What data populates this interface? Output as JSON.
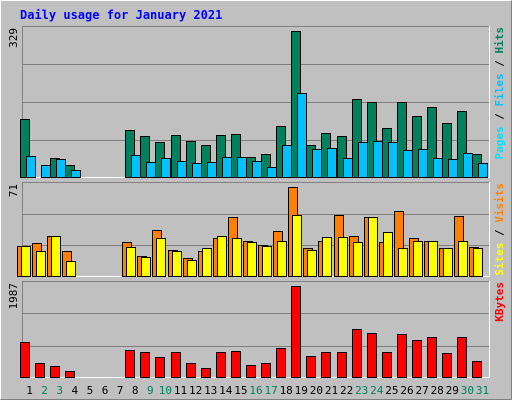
{
  "title": "Daily usage for January 2021",
  "colors": {
    "background": "#C0C0C0",
    "title": "#0000FF",
    "hits": "#00805C",
    "files": "#00C0FF",
    "pages": "#00E0FF",
    "visits": "#FF8000",
    "sites": "#FFFF00",
    "kbytes": "#FF0000",
    "weekend_day": "#00805C",
    "weekday": "#000000"
  },
  "chart_data": [
    {
      "type": "bar",
      "name": "hits-files-pages",
      "categories": [
        "1",
        "2",
        "3",
        "4",
        "5",
        "6",
        "7",
        "8",
        "9",
        "10",
        "11",
        "12",
        "13",
        "14",
        "15",
        "16",
        "17",
        "18",
        "19",
        "20",
        "21",
        "22",
        "23",
        "24",
        "25",
        "26",
        "27",
        "28",
        "29",
        "30",
        "31"
      ],
      "ymax_label": "329",
      "ylim": [
        0,
        329
      ],
      "legend": [
        "Pages",
        "/",
        "Files",
        "/",
        "Hits"
      ],
      "series": [
        {
          "name": "Hits",
          "color_key": "hits",
          "values": [
            130,
            0,
            42,
            28,
            0,
            0,
            0,
            105,
            92,
            78,
            95,
            80,
            72,
            95,
            98,
            45,
            52,
            115,
            329,
            72,
            100,
            92,
            175,
            170,
            110,
            168,
            138,
            158,
            122,
            148,
            52
          ]
        },
        {
          "name": "Files",
          "color_key": "files",
          "values": [
            48,
            26,
            40,
            16,
            0,
            0,
            0,
            50,
            33,
            42,
            35,
            32,
            33,
            44,
            45,
            36,
            22,
            72,
            190,
            64,
            65,
            42,
            78,
            80,
            78,
            60,
            64,
            42,
            40,
            55,
            32
          ]
        },
        {
          "name": "Pages",
          "color_key": "pages",
          "values": [
            0,
            0,
            0,
            0,
            0,
            0,
            0,
            0,
            0,
            0,
            0,
            0,
            0,
            0,
            0,
            0,
            0,
            0,
            0,
            0,
            0,
            0,
            0,
            0,
            0,
            0,
            0,
            0,
            0,
            0,
            0
          ]
        }
      ]
    },
    {
      "type": "bar",
      "name": "visits-sites",
      "categories": [
        "1",
        "2",
        "3",
        "4",
        "5",
        "6",
        "7",
        "8",
        "9",
        "10",
        "11",
        "12",
        "13",
        "14",
        "15",
        "16",
        "17",
        "18",
        "19",
        "20",
        "21",
        "22",
        "23",
        "24",
        "25",
        "26",
        "27",
        "28",
        "29",
        "30",
        "31"
      ],
      "ymax_label": "71",
      "ylim": [
        0,
        71
      ],
      "legend": [
        "Sites",
        "/",
        "Visits"
      ],
      "series": [
        {
          "name": "Visits",
          "color_key": "visits",
          "values": [
            24,
            26,
            32,
            20,
            0,
            0,
            0,
            27,
            16,
            37,
            21,
            14,
            20,
            30,
            47,
            28,
            25,
            36,
            71,
            22,
            28,
            49,
            32,
            47,
            27,
            52,
            30,
            28,
            22,
            48,
            23
          ]
        },
        {
          "name": "Sites",
          "color_key": "sites",
          "values": [
            24,
            20,
            32,
            12,
            0,
            0,
            0,
            23,
            15,
            30,
            20,
            13,
            22,
            32,
            30,
            27,
            24,
            28,
            49,
            21,
            31,
            31,
            27,
            47,
            35,
            22,
            28,
            28,
            22,
            28,
            22
          ]
        }
      ]
    },
    {
      "type": "bar",
      "name": "kbytes",
      "categories": [
        "1",
        "2",
        "3",
        "4",
        "5",
        "6",
        "7",
        "8",
        "9",
        "10",
        "11",
        "12",
        "13",
        "14",
        "15",
        "16",
        "17",
        "18",
        "19",
        "20",
        "21",
        "22",
        "23",
        "24",
        "25",
        "26",
        "27",
        "28",
        "29",
        "30",
        "31"
      ],
      "ymax_label": "1987",
      "ylim": [
        0,
        1987
      ],
      "legend": [
        "KBytes"
      ],
      "series": [
        {
          "name": "KBytes",
          "color_key": "kbytes",
          "values": [
            765,
            300,
            250,
            130,
            0,
            0,
            0,
            590,
            550,
            440,
            540,
            300,
            200,
            540,
            560,
            260,
            310,
            640,
            1987,
            450,
            550,
            550,
            1050,
            960,
            550,
            930,
            800,
            880,
            530,
            870,
            340
          ]
        }
      ]
    }
  ]
}
